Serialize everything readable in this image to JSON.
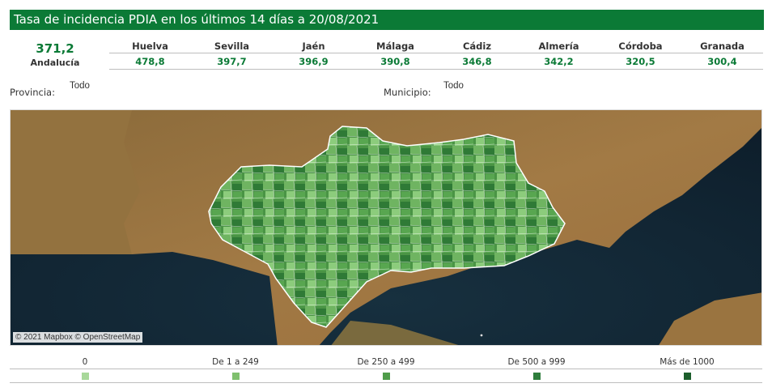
{
  "header": {
    "title": "Tasa de incidencia PDIA en los últimos 14 días a 20/08/2021"
  },
  "summary": {
    "value": "371,2",
    "label": "Andalucía"
  },
  "provinces": [
    {
      "name": "Huelva",
      "value": "478,8"
    },
    {
      "name": "Sevilla",
      "value": "397,7"
    },
    {
      "name": "Jaén",
      "value": "396,9"
    },
    {
      "name": "Málaga",
      "value": "390,8"
    },
    {
      "name": "Cádiz",
      "value": "346,8"
    },
    {
      "name": "Almería",
      "value": "342,2"
    },
    {
      "name": "Córdoba",
      "value": "320,5"
    },
    {
      "name": "Granada",
      "value": "300,4"
    }
  ],
  "filters": {
    "provincia_label": "Provincia:",
    "provincia_value": "Todo",
    "municipio_label": "Municipio:",
    "municipio_value": "Todo"
  },
  "map": {
    "attribution": "© 2021 Mapbox © OpenStreetMap"
  },
  "legend": [
    {
      "label": "0",
      "color": "#a8d89a"
    },
    {
      "label": "De 1 a 249",
      "color": "#7fc06e"
    },
    {
      "label": "De 250 a 499",
      "color": "#4f9c4a"
    },
    {
      "label": "De 500 a 999",
      "color": "#2e7d3c"
    },
    {
      "label": "Más de 1000",
      "color": "#1c5e2c"
    }
  ],
  "colors": {
    "header_bg": "#0b7a36",
    "accent": "#0b7a36"
  }
}
